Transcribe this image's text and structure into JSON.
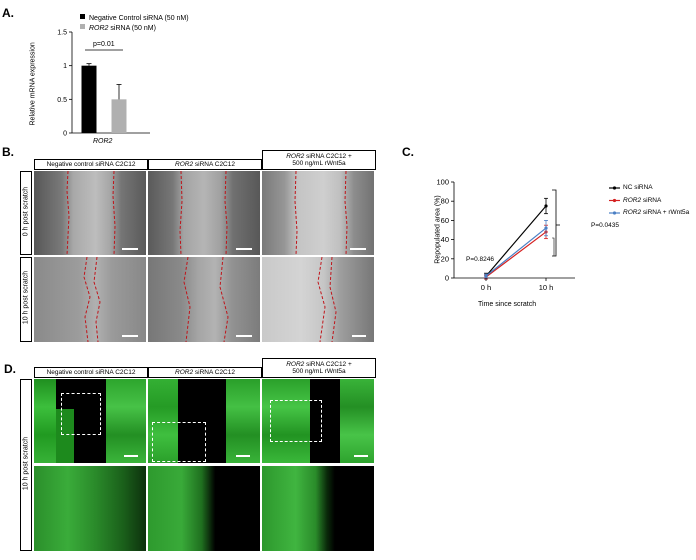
{
  "panels": {
    "a": "A.",
    "b": "B.",
    "c": "C.",
    "d": "D."
  },
  "panel_a": {
    "legend": [
      "Negative Control siRNA (50 nM)",
      "ROR2 siRNA (50 nM)"
    ],
    "legend_italic_prefix": [
      "",
      "ROR2"
    ],
    "ylabel": "Relative mRNA expression",
    "xlabel": "ROR2",
    "pvalue": "p=0.01",
    "yticks": [
      "0",
      "0.5",
      "1",
      "1.5"
    ],
    "colors": {
      "control": "#000000",
      "knockdown": "#b0b0b0"
    }
  },
  "panel_b": {
    "col_headers": [
      {
        "italic": "",
        "text": "Negative control siRNA C2C12",
        "line2": ""
      },
      {
        "italic": "ROR2",
        "text": " siRNA C2C12",
        "line2": ""
      },
      {
        "italic": "ROR2",
        "text": " siRNA C2C12 +",
        "line2": "500 ng/mL rWnt5a"
      }
    ],
    "row_labels": [
      "0 h post scratch",
      "10 h post scratch"
    ]
  },
  "panel_d": {
    "col_headers": [
      {
        "italic": "",
        "text": "Negative control siRNA C2C12",
        "line2": ""
      },
      {
        "italic": "ROR2",
        "text": " siRNA C2C12",
        "line2": ""
      },
      {
        "italic": "ROR2",
        "text": " siRNA C2C12 +",
        "line2": "500 ng/mL rWnt5a"
      }
    ],
    "row_label": "10 h post scratch"
  },
  "panel_c": {
    "ylabel": "Repopulated area (%)",
    "xlabel": "Time since scratch",
    "legend": [
      {
        "italic": "",
        "text": "NC siRNA"
      },
      {
        "italic": "ROR2",
        "text": " siRNA"
      },
      {
        "italic": "ROR2",
        "text": " siRNA + rWnt5a"
      }
    ],
    "p_early": "P=0.8246",
    "p_late": "P=0.0435"
  },
  "chart_data": [
    {
      "type": "bar",
      "categories": [
        "ROR2"
      ],
      "series": [
        {
          "name": "Negative Control siRNA (50 nM)",
          "values": [
            1.0
          ],
          "error": [
            0.03
          ],
          "color": "#000000"
        },
        {
          "name": "ROR2 siRNA (50 nM)",
          "values": [
            0.5
          ],
          "error": [
            0.22
          ],
          "color": "#b0b0b0"
        }
      ],
      "ylabel": "Relative mRNA expression",
      "xlabel": "ROR2",
      "ylim": [
        0,
        1.5
      ],
      "yticks": [
        0,
        0.5,
        1,
        1.5
      ],
      "annotation": "p=0.01"
    },
    {
      "type": "line",
      "x": [
        "0 h",
        "10 h"
      ],
      "series": [
        {
          "name": "NC siRNA",
          "values": [
            2,
            75
          ],
          "error": [
            3,
            8
          ],
          "color": "#000000"
        },
        {
          "name": "ROR2 siRNA",
          "values": [
            1,
            48
          ],
          "error": [
            2,
            7
          ],
          "color": "#d42020"
        },
        {
          "name": "ROR2 siRNA + rWnt5a",
          "values": [
            2,
            52
          ],
          "error": [
            2,
            8
          ],
          "color": "#4a7fc4"
        }
      ],
      "ylabel": "Repopulated area (%)",
      "xlabel": "Time since scratch",
      "ylim": [
        0,
        100
      ],
      "yticks": [
        0,
        20,
        40,
        60,
        80,
        100
      ],
      "annotations": [
        "P=0.8246",
        "P=0.0435"
      ],
      "legend": "top-right"
    }
  ]
}
